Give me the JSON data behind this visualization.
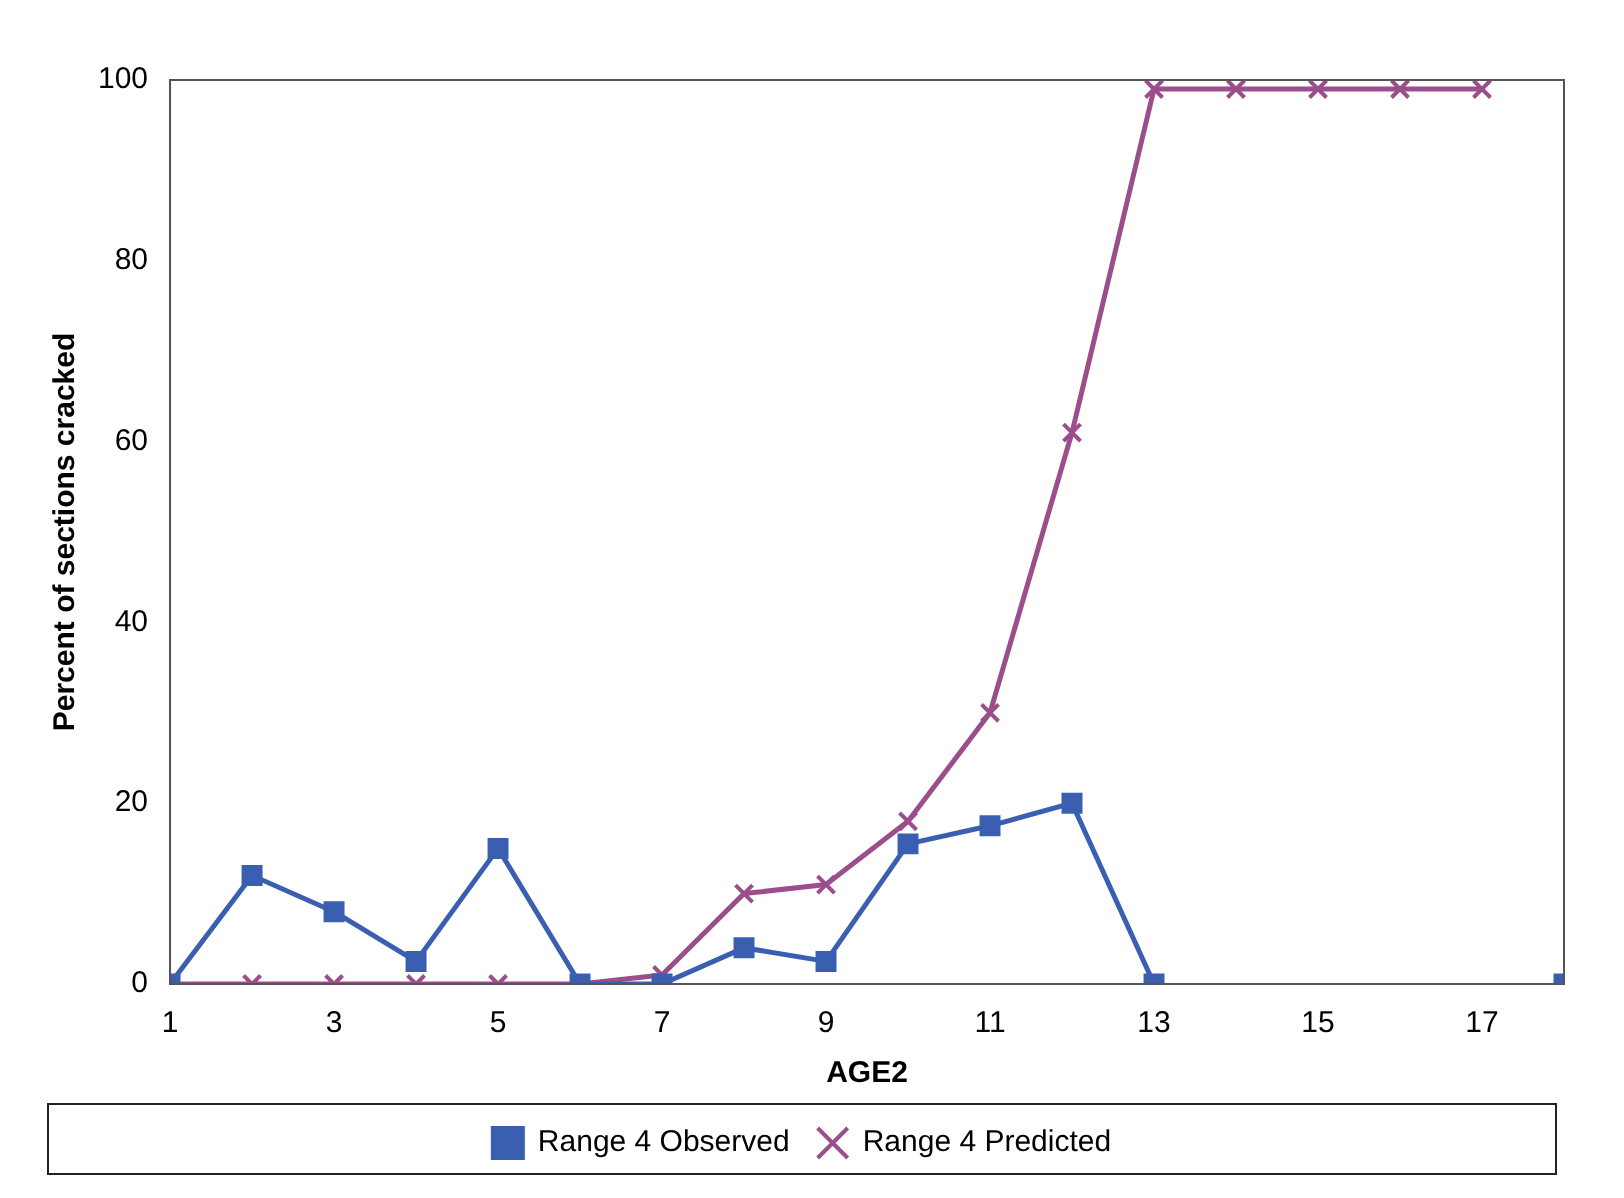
{
  "chart_data": {
    "type": "line",
    "xlabel": "AGE2",
    "ylabel": "Percent of sections cracked",
    "x": [
      1,
      2,
      3,
      4,
      5,
      6,
      7,
      8,
      9,
      10,
      11,
      12,
      13,
      14,
      15,
      16,
      17,
      18
    ],
    "series": [
      {
        "name": "Range 4 Observed",
        "color": "#3a5fb0",
        "marker": "square",
        "values": [
          0,
          12,
          8,
          2.5,
          15,
          0,
          0,
          4,
          2.5,
          15.5,
          17.5,
          20,
          0,
          null,
          null,
          null,
          null,
          0
        ]
      },
      {
        "name": "Range 4 Predicted",
        "color": "#9b4d8c",
        "marker": "cross",
        "values": [
          0,
          0,
          0,
          0,
          0,
          0,
          1,
          10,
          11,
          18,
          30,
          61,
          99,
          99,
          99,
          99,
          99,
          null
        ]
      }
    ],
    "xlim": [
      1,
      18
    ],
    "xticks": [
      1,
      3,
      5,
      7,
      9,
      11,
      13,
      15,
      17
    ],
    "ylim": [
      0,
      100
    ],
    "yticks": [
      0,
      20,
      40,
      60,
      80,
      100
    ],
    "grid": false,
    "legend": "bottom",
    "line_style": "solid"
  }
}
